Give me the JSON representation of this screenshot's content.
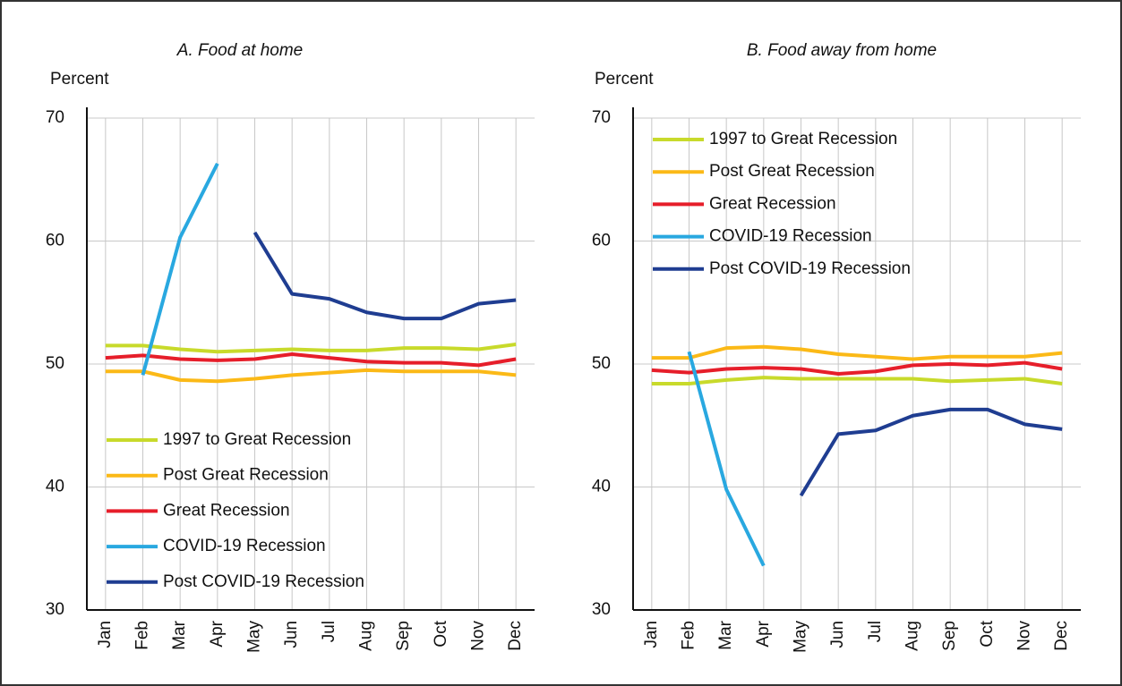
{
  "chart_data": [
    {
      "type": "line",
      "title": "A.   Food at home",
      "y_label": "Percent",
      "categories": [
        "Jan",
        "Feb",
        "Mar",
        "Apr",
        "May",
        "Jun",
        "Jul",
        "Aug",
        "Sep",
        "Oct",
        "Nov",
        "Dec"
      ],
      "ylim": [
        30,
        70
      ],
      "yticks": [
        30,
        40,
        50,
        60,
        70
      ],
      "grid": true,
      "legend": "lower left",
      "series": [
        {
          "name": "1997 to Great Recession",
          "color": "#c8da2b",
          "values": [
            51.5,
            51.5,
            51.2,
            51.0,
            51.1,
            51.2,
            51.1,
            51.1,
            51.3,
            51.3,
            51.2,
            51.6
          ]
        },
        {
          "name": "Post Great Recession",
          "color": "#fbb917",
          "values": [
            49.4,
            49.4,
            48.7,
            48.6,
            48.8,
            49.1,
            49.3,
            49.5,
            49.4,
            49.4,
            49.4,
            49.1
          ]
        },
        {
          "name": "Great Recession",
          "color": "#e61e2a",
          "values": [
            50.5,
            50.7,
            50.4,
            50.3,
            50.4,
            50.8,
            50.5,
            50.2,
            50.1,
            50.1,
            49.9,
            50.4
          ]
        },
        {
          "name": "COVID-19 Recession",
          "color": "#29a8e0",
          "values": [
            null,
            49.1,
            60.3,
            66.3,
            null,
            null,
            null,
            null,
            null,
            null,
            null,
            null
          ]
        },
        {
          "name": "Post COVID-19 Recession",
          "color": "#1f3d91",
          "values": [
            null,
            null,
            null,
            null,
            60.7,
            55.7,
            55.3,
            54.2,
            53.7,
            53.7,
            54.9,
            55.2
          ]
        }
      ]
    },
    {
      "type": "line",
      "title": "B.   Food away from home",
      "y_label": "Percent",
      "categories": [
        "Jan",
        "Feb",
        "Mar",
        "Apr",
        "May",
        "Jun",
        "Jul",
        "Aug",
        "Sep",
        "Oct",
        "Nov",
        "Dec"
      ],
      "ylim": [
        30,
        70
      ],
      "yticks": [
        30,
        40,
        50,
        60,
        70
      ],
      "grid": true,
      "legend": "upper left",
      "series": [
        {
          "name": "1997 to Great Recession",
          "color": "#c8da2b",
          "values": [
            48.4,
            48.4,
            48.7,
            48.9,
            48.8,
            48.8,
            48.8,
            48.8,
            48.6,
            48.7,
            48.8,
            48.4
          ]
        },
        {
          "name": "Post Great Recession",
          "color": "#fbb917",
          "values": [
            50.5,
            50.5,
            51.3,
            51.4,
            51.2,
            50.8,
            50.6,
            50.4,
            50.6,
            50.6,
            50.6,
            50.9
          ]
        },
        {
          "name": "Great Recession",
          "color": "#e61e2a",
          "values": [
            49.5,
            49.3,
            49.6,
            49.7,
            49.6,
            49.2,
            49.4,
            49.9,
            50.0,
            49.9,
            50.1,
            49.6
          ]
        },
        {
          "name": "COVID-19 Recession",
          "color": "#29a8e0",
          "values": [
            null,
            51.0,
            39.8,
            33.6,
            null,
            null,
            null,
            null,
            null,
            null,
            null,
            null
          ]
        },
        {
          "name": "Post COVID-19 Recession",
          "color": "#1f3d91",
          "values": [
            null,
            null,
            null,
            null,
            39.3,
            44.3,
            44.6,
            45.8,
            46.3,
            46.3,
            45.1,
            44.7
          ]
        }
      ]
    }
  ]
}
